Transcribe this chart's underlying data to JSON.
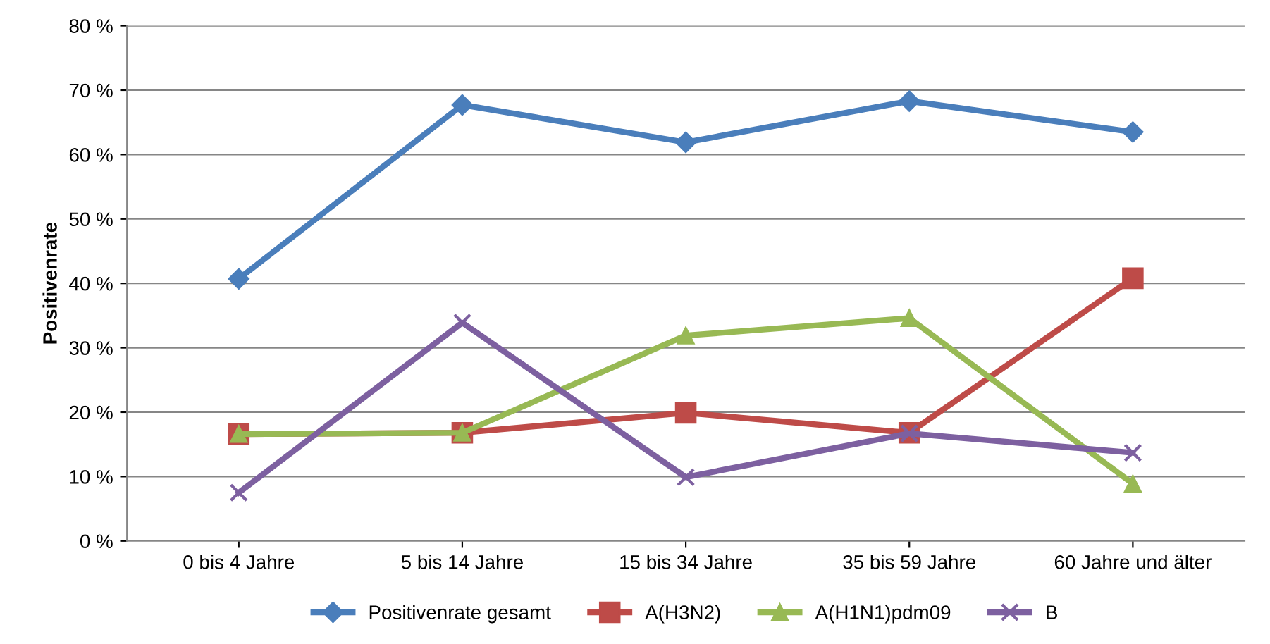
{
  "chart_data": {
    "type": "line",
    "ylabel": "Positivenrate",
    "categories": [
      "0 bis 4 Jahre",
      "5 bis 14 Jahre",
      "15 bis 34 Jahre",
      "35 bis 59 Jahre",
      "60 Jahre und älter"
    ],
    "series": [
      {
        "name": "Positivenrate gesamt",
        "color": "#4a7ebb",
        "marker": "diamond",
        "values": [
          40.7,
          67.7,
          61.9,
          68.3,
          63.5
        ]
      },
      {
        "name": "A(H3N2)",
        "color": "#be4b48",
        "marker": "square",
        "values": [
          16.6,
          16.8,
          19.9,
          16.8,
          40.8
        ]
      },
      {
        "name": "A(H1N1)pdm09",
        "color": "#98b954",
        "marker": "triangle",
        "values": [
          16.6,
          16.8,
          31.9,
          34.6,
          8.9
        ]
      },
      {
        "name": "B",
        "color": "#7d60a0",
        "marker": "cross",
        "values": [
          7.5,
          33.9,
          9.9,
          16.7,
          13.7
        ]
      }
    ],
    "ylim": [
      0,
      80
    ],
    "yticks": [
      {
        "value": 0,
        "label": "0 %"
      },
      {
        "value": 10,
        "label": "10 %"
      },
      {
        "value": 20,
        "label": "20 %"
      },
      {
        "value": 30,
        "label": "30 %"
      },
      {
        "value": 40,
        "label": "40 %"
      },
      {
        "value": 50,
        "label": "50 %"
      },
      {
        "value": 60,
        "label": "60 %"
      },
      {
        "value": 70,
        "label": "70 %"
      },
      {
        "value": 80,
        "label": "80 %"
      }
    ],
    "grid": "y",
    "legend": "bottom",
    "line_style": "solid"
  }
}
